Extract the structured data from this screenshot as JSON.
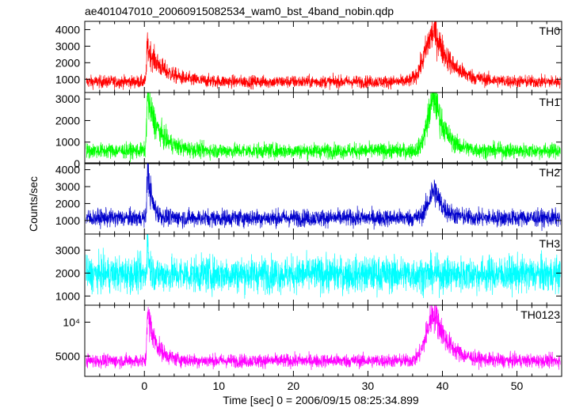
{
  "chart_data": {
    "type": "line",
    "title": "ae401047010_20060915082534_wam0_bst_4band_nobin.qdp",
    "xlabel": "Time [sec] 0 = 2006/09/15 08:25:34.899",
    "ylabel": "Counts/sec",
    "xlim": [
      -8,
      56
    ],
    "x_ticks": [
      0,
      10,
      20,
      30,
      40,
      50
    ],
    "grid": false,
    "panels": [
      {
        "name": "TH0",
        "color": "#ff0000",
        "ylim": [
          200,
          4500
        ],
        "y_ticks": [
          1000,
          2000,
          3000,
          4000
        ],
        "y_tick_labels": [
          "1000",
          "2000",
          "3000",
          "4000"
        ],
        "baseline": 850,
        "noise": 170,
        "events": [
          {
            "t": 0.4,
            "peak": 2900,
            "rise": 0.15,
            "decay": 2.2
          },
          {
            "t": 39.0,
            "peak": 3900,
            "rise": 1.8,
            "decay": 2.2
          }
        ]
      },
      {
        "name": "TH1",
        "color": "#00ff00",
        "ylim": [
          0,
          3300
        ],
        "y_ticks": [
          0,
          1000,
          2000,
          3000
        ],
        "y_tick_labels": [
          "0",
          "1000",
          "2000",
          "3000"
        ],
        "baseline": 600,
        "noise": 160,
        "events": [
          {
            "t": 0.4,
            "peak": 3100,
            "rise": 0.15,
            "decay": 1.6
          },
          {
            "t": 39.0,
            "peak": 3100,
            "rise": 1.3,
            "decay": 1.4
          }
        ]
      },
      {
        "name": "TH2",
        "color": "#0000cc",
        "ylim": [
          200,
          4400
        ],
        "y_ticks": [
          1000,
          2000,
          3000,
          4000
        ],
        "y_tick_labels": [
          "1000",
          "2000",
          "3000",
          "4000"
        ],
        "baseline": 1150,
        "noise": 230,
        "events": [
          {
            "t": 0.4,
            "peak": 4200,
            "rise": 0.1,
            "decay": 0.6
          },
          {
            "t": 39.0,
            "peak": 2800,
            "rise": 1.2,
            "decay": 1.2
          }
        ]
      },
      {
        "name": "TH3",
        "color": "#00ffff",
        "ylim": [
          600,
          3700
        ],
        "y_ticks": [
          1000,
          2000,
          3000
        ],
        "y_tick_labels": [
          "1000",
          "2000",
          "3000"
        ],
        "baseline": 1950,
        "noise": 350,
        "events": [
          {
            "t": 0.4,
            "peak": 3600,
            "rise": 0.1,
            "decay": 0.25
          }
        ]
      },
      {
        "name": "TH0123",
        "color": "#ff00ff",
        "ylim": [
          2000,
          12500
        ],
        "y_ticks": [
          5000,
          10000
        ],
        "y_tick_labels": [
          "5000",
          "10⁴"
        ],
        "baseline": 4300,
        "noise": 450,
        "events": [
          {
            "t": 0.4,
            "peak": 11500,
            "rise": 0.12,
            "decay": 1.2
          },
          {
            "t": 39.0,
            "peak": 11500,
            "rise": 1.5,
            "decay": 1.8
          }
        ]
      }
    ]
  }
}
